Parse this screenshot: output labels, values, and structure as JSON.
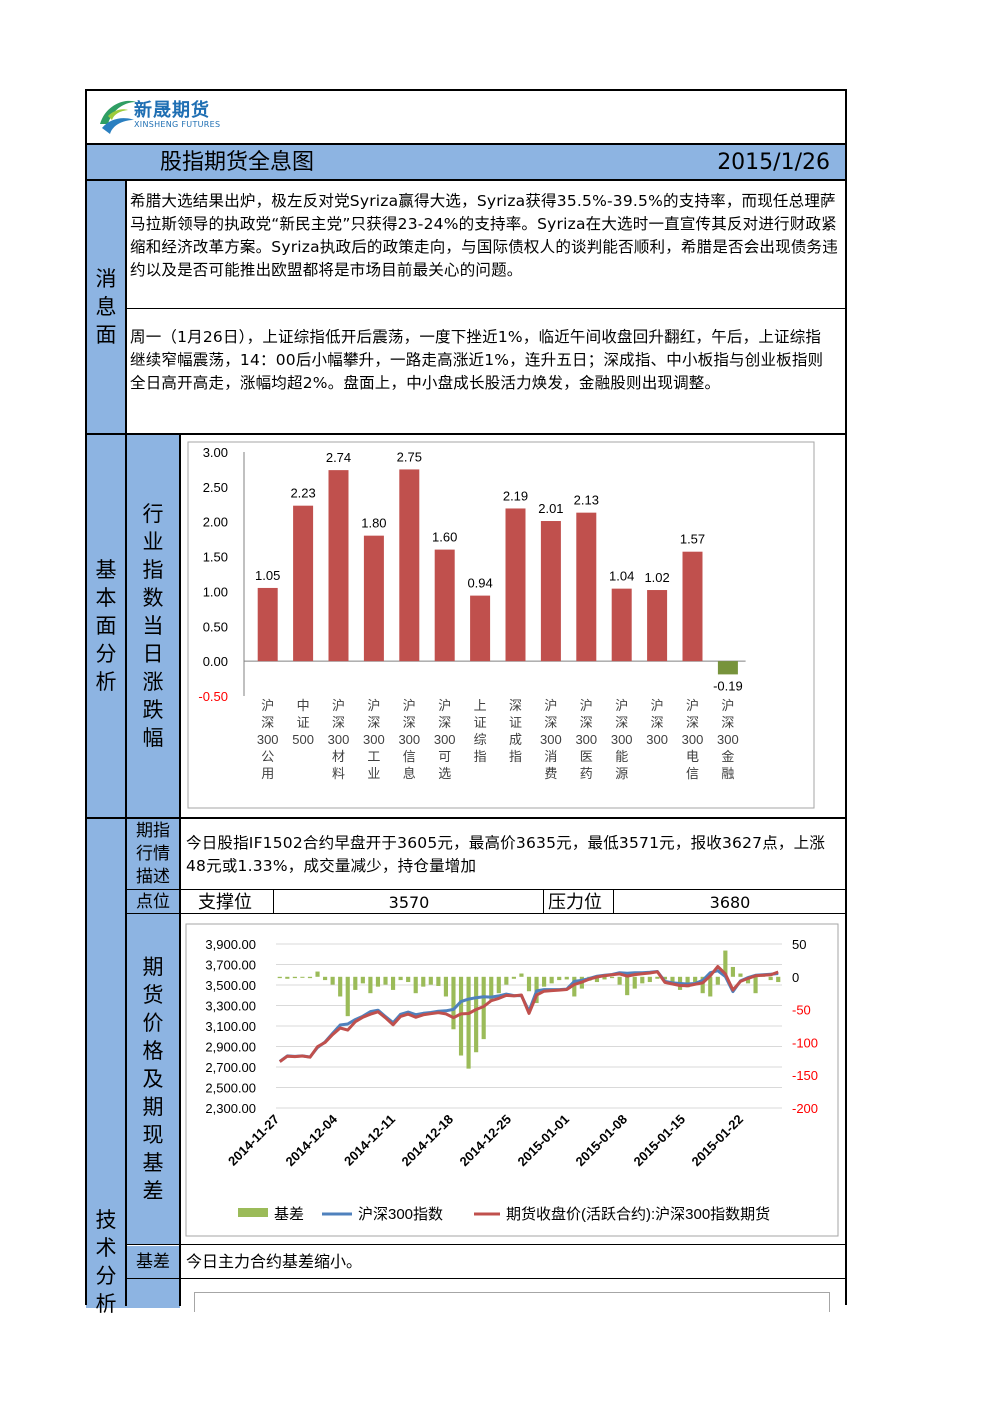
{
  "logo": {
    "name_cn": "新晟期货",
    "name_en": "XINSHENG FUTURES"
  },
  "header": {
    "title": "股指期货全息图",
    "date": "2015/1/26"
  },
  "sections": {
    "news": "消息面",
    "fundamental": "基本面分析",
    "technical": "技术分析"
  },
  "news": {
    "para1": "希腊大选结果出炉，极左反对党Syriza赢得大选，Syriza获得35.5%-39.5%的支持率，而现任总理萨马拉斯领导的执政党“新民主党”只获得23-24%的支持率。Syriza在大选时一直宣传其反对进行财政紧缩和经济改革方案。Syriza执政后的政策走向，与国际债权人的谈判能否顺利，希腊是否会出现债务违约以及是否可能推出欧盟都将是市场目前最关心的问题。",
    "para2": "周一（1月26日），上证综指低开后震荡，一度下挫近1%，临近午间收盘回升翻红，午后，上证综指继续窄幅震荡，14：00后小幅攀升，一路走高涨近1%，连升五日；深成指、中小板指与创业板指则全日高开高走，涨幅均超2%。盘面上，中小盘成长股活力焕发，金融股则出现调整。"
  },
  "industry": {
    "label": "行业指数当日涨跌幅"
  },
  "futures": {
    "desc_label": "期指行情描述",
    "desc": "今日股指IF1502合约早盘开于3605元，最高价3635元，最低3571元，报收3627点，上涨48元或1.33%，成交量减少，持仓量增加",
    "points_label": "点位",
    "support_label": "支撑位",
    "support_value": "3570",
    "resistance_label": "压力位",
    "resistance_value": "3680",
    "chart_label": "期货价格及期现基差",
    "basis_label": "基差",
    "basis_text": "今日主力合约基差缩小。"
  },
  "chart_data": [
    {
      "type": "bar",
      "categories": [
        "沪深300公用",
        "中证500",
        "沪深300材料",
        "沪深300工业",
        "沪深300信息",
        "沪深300可选",
        "上证综指",
        "深证成指",
        "沪深300消费",
        "沪深300医药",
        "沪深300能源",
        "沪深300",
        "沪深300电信",
        "沪深300金融"
      ],
      "values": [
        1.05,
        2.23,
        2.74,
        1.8,
        2.75,
        1.6,
        0.94,
        2.19,
        2.01,
        2.13,
        1.04,
        1.02,
        1.57,
        -0.19
      ],
      "value_labels": [
        "1.05",
        "2.23",
        "2.74",
        "1.80",
        "2.75",
        "1.60",
        "0.94",
        "2.19",
        "2.01",
        "2.13",
        "1.04",
        "1.02",
        "1.57",
        "-0.19"
      ],
      "ylim": [
        -0.5,
        3.0
      ],
      "yticks": [
        "3.00",
        "2.50",
        "2.00",
        "1.50",
        "1.00",
        "0.50",
        "0.00",
        "-0.50"
      ],
      "colors": {
        "positive": "#c0504d",
        "negative": "#77933c"
      },
      "grid": false
    },
    {
      "type": "line",
      "x_ticks": [
        "2014-11-27",
        "2014-12-04",
        "2014-12-11",
        "2014-12-18",
        "2014-12-25",
        "2015-01-01",
        "2015-01-08",
        "2015-01-15",
        "2015-01-22"
      ],
      "left_axis": {
        "ticks": [
          "3,900.00",
          "3,700.00",
          "3,500.00",
          "3,300.00",
          "3,100.00",
          "2,900.00",
          "2,700.00",
          "2,500.00",
          "2,300.00"
        ],
        "range": [
          2300,
          3900
        ]
      },
      "right_axis": {
        "ticks": [
          "50",
          "0",
          "-50",
          "-100",
          "-150",
          "-200"
        ],
        "range": [
          -200,
          50
        ]
      },
      "series": [
        {
          "name": "基差",
          "kind": "bar",
          "axis": "right",
          "color": "#9bbb59",
          "values": [
            -2,
            -3,
            -2,
            -1,
            -2,
            8,
            -5,
            -12,
            -30,
            -60,
            -20,
            -10,
            -25,
            -15,
            -12,
            -20,
            -5,
            -8,
            -25,
            -15,
            -12,
            -14,
            -30,
            -80,
            -120,
            -140,
            -115,
            -95,
            -35,
            -25,
            -12,
            -3,
            5,
            -22,
            -40,
            -15,
            -10,
            -5,
            -4,
            -30,
            -18,
            -6,
            -8,
            -4,
            -2,
            -12,
            -28,
            -18,
            -10,
            -8,
            -3,
            -4,
            -10,
            -20,
            -16,
            -8,
            -25,
            -30,
            -12,
            40,
            15,
            5,
            -10,
            -25,
            5,
            -5,
            -8
          ]
        },
        {
          "name": "沪深300指数",
          "kind": "line",
          "axis": "left",
          "color": "#4f81bd",
          "values": [
            2754,
            2808,
            2803,
            2808,
            2798,
            2890,
            2945,
            3028,
            3110,
            3120,
            3162,
            3196,
            3240,
            3254,
            3192,
            3132,
            3214,
            3236,
            3210,
            3224,
            3232,
            3244,
            3248,
            3262,
            3338,
            3362,
            3376,
            3385,
            3382,
            3394,
            3411,
            3397,
            3397,
            3245,
            3442,
            3455,
            3455,
            3455,
            3460,
            3535,
            3546,
            3564,
            3586,
            3595,
            3602,
            3620,
            3615,
            3619,
            3620,
            3625,
            3632,
            3535,
            3520,
            3515,
            3510,
            3515,
            3545,
            3620,
            3640,
            3582,
            3436,
            3540,
            3572,
            3595,
            3600,
            3605,
            3612
          ]
        },
        {
          "name": "期货收盘价(活跃合约):沪深300指数期货",
          "kind": "line",
          "axis": "left",
          "color": "#c0504d",
          "values": [
            2752,
            2805,
            2801,
            2807,
            2796,
            2898,
            2940,
            3016,
            3080,
            3060,
            3142,
            3186,
            3215,
            3239,
            3180,
            3112,
            3194,
            3216,
            3185,
            3209,
            3220,
            3230,
            3218,
            3182,
            3218,
            3222,
            3261,
            3290,
            3347,
            3369,
            3399,
            3394,
            3402,
            3223,
            3402,
            3440,
            3445,
            3450,
            3456,
            3505,
            3528,
            3558,
            3578,
            3591,
            3600,
            3608,
            3587,
            3601,
            3610,
            3617,
            3629,
            3525,
            3510,
            3495,
            3492,
            3507,
            3520,
            3590,
            3680,
            3607,
            3451,
            3535,
            3564,
            3590,
            3596,
            3600,
            3627
          ]
        }
      ],
      "legend": "bottom"
    }
  ]
}
